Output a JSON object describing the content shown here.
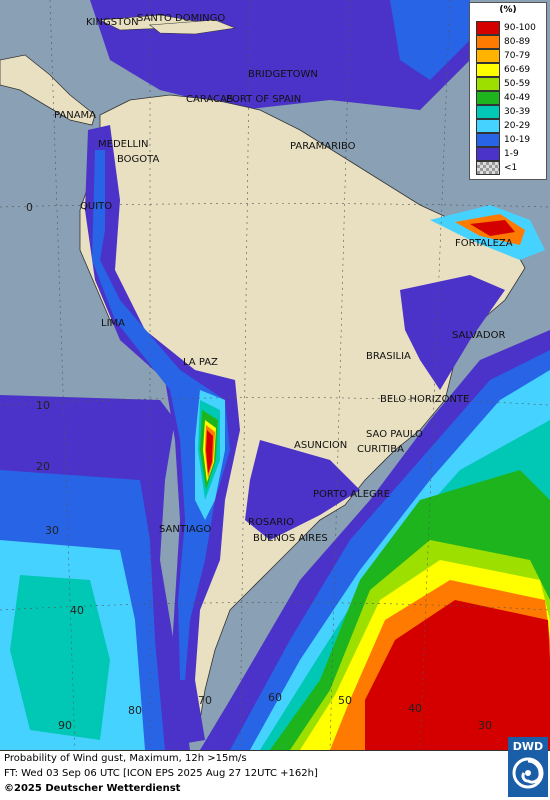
{
  "legend": {
    "title": "(%)",
    "items": [
      {
        "label": "90-100",
        "color": "#d40000"
      },
      {
        "label": "80-89",
        "color": "#ff7a00"
      },
      {
        "label": "70-79",
        "color": "#ffb400"
      },
      {
        "label": "60-69",
        "color": "#ffff00"
      },
      {
        "label": "50-59",
        "color": "#9de000"
      },
      {
        "label": "40-49",
        "color": "#1eb41e"
      },
      {
        "label": "30-39",
        "color": "#00c8b4"
      },
      {
        "label": "20-29",
        "color": "#46d2ff"
      },
      {
        "label": "10-19",
        "color": "#2864e6"
      },
      {
        "label": "1-9",
        "color": "#4b32c8"
      },
      {
        "label": "<1",
        "color": "checker"
      }
    ]
  },
  "cities": {
    "kingston": "KINGSTON",
    "santo_domingo": "SANTO DOMINGO",
    "bridgetown": "BRIDGETOWN",
    "panama": "PANAMA",
    "caracas": "CARACAS",
    "port_of_spain": "PORT OF SPAIN",
    "paramaribo": "PARAMARIBO",
    "medellin": "MEDELLIN",
    "bogota": "BOGOTA",
    "quito": "QUITO",
    "fortaleza": "FORTALEZA",
    "lima": "LIMA",
    "salvador": "SALVADOR",
    "brasilia": "BRASILIA",
    "la_paz": "LA PAZ",
    "belo_horizonte": "BELO HORIZONTE",
    "sao_paulo": "SAO PAULO",
    "curitiba": "CURITIBA",
    "asuncion": "ASUNCION",
    "porto_alegre": "PORTO ALEGRE",
    "rosario": "ROSARIO",
    "buenos_aires": "BUENOS AIRES",
    "santiago": "SANTIAGO"
  },
  "grid_labels": {
    "lat_0": "0",
    "lat_10": "10",
    "lat_20": "20",
    "lat_30": "30",
    "lat_40": "40",
    "lon_90": "90",
    "lon_80": "80",
    "lon_70": "70",
    "lon_60": "60",
    "lon_50": "50",
    "lon_40": "40",
    "lon_30": "30"
  },
  "footer": {
    "line1": "Probability of Wind gust, Maximum, 12h >15m/s",
    "line2": "FT: Wed 03 Sep 06 UTC [ICON EPS 2025 Aug 27 12UTC +162h]",
    "line3": "©2025 Deutscher Wetterdienst"
  },
  "logo": {
    "text": "DWD"
  },
  "colors": {
    "land": "#e8e0c0",
    "ocean_gray": "#8aa0b4",
    "blue_violet": "#4b32c8",
    "blue": "#2864e6",
    "cyan": "#46d2ff",
    "teal": "#00c8b4",
    "green": "#1eb41e",
    "yellow_green": "#9de000",
    "yellow": "#ffff00",
    "orange": "#ff7a00",
    "red": "#d40000",
    "dwd_blue": "#1a5ea8"
  }
}
